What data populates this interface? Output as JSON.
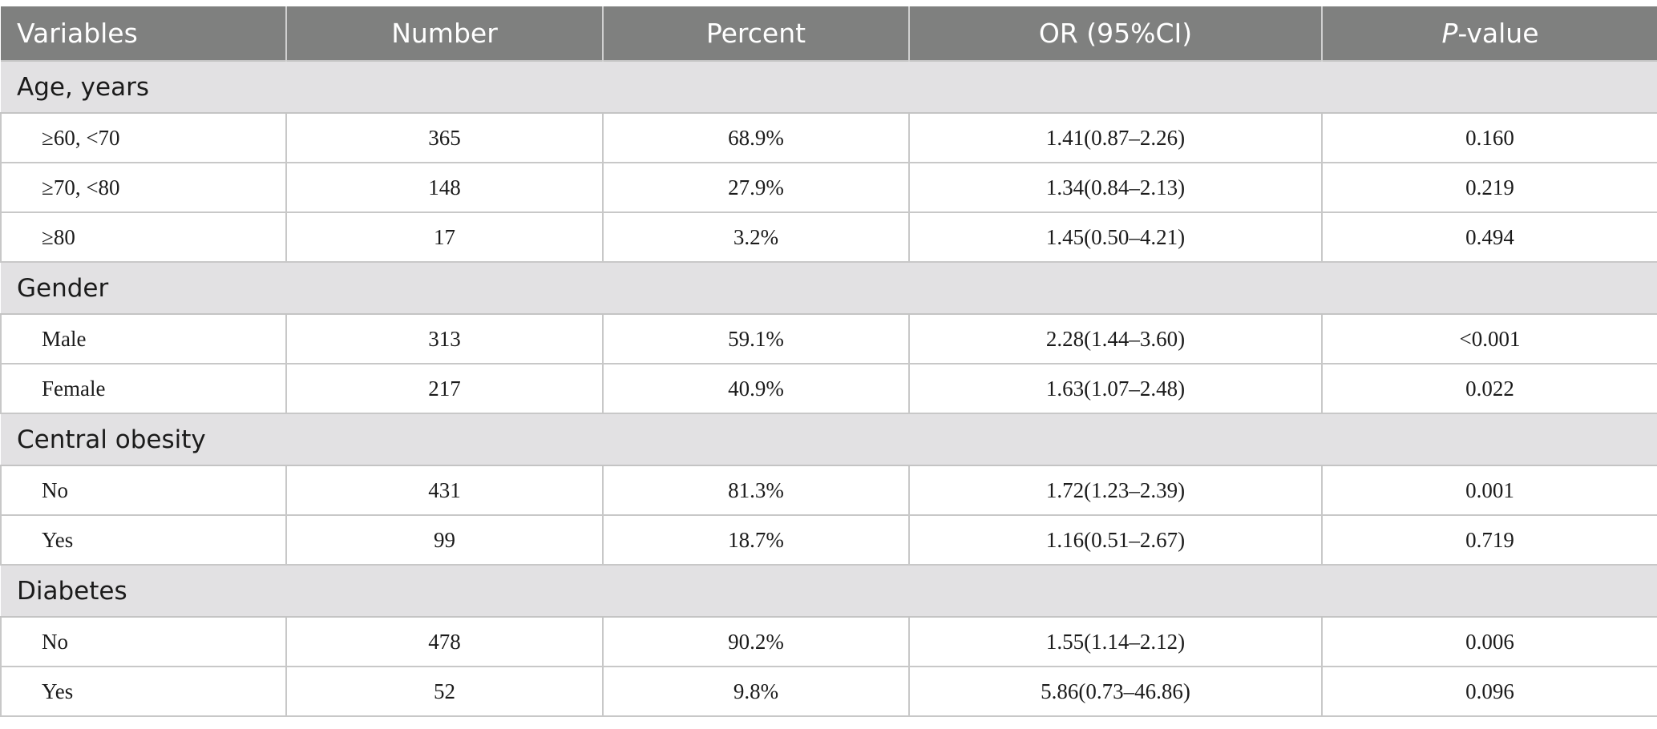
{
  "table": {
    "headers": [
      "Variables",
      "Number",
      "Percent",
      "OR (95%CI)"
    ],
    "pvalue_header": {
      "italic": "P",
      "rest": "-value"
    },
    "groups": [
      {
        "label": "Age, years",
        "rows": [
          [
            "≥60, <70",
            "365",
            "68.9%",
            "1.41(0.87–2.26)",
            "0.160"
          ],
          [
            "≥70, <80",
            "148",
            "27.9%",
            "1.34(0.84–2.13)",
            "0.219"
          ],
          [
            "≥80",
            "17",
            "3.2%",
            "1.45(0.50–4.21)",
            "0.494"
          ]
        ]
      },
      {
        "label": "Gender",
        "rows": [
          [
            "Male",
            "313",
            "59.1%",
            "2.28(1.44–3.60)",
            "<0.001"
          ],
          [
            "Female",
            "217",
            "40.9%",
            "1.63(1.07–2.48)",
            "0.022"
          ]
        ]
      },
      {
        "label": "Central obesity",
        "rows": [
          [
            "No",
            "431",
            "81.3%",
            "1.72(1.23–2.39)",
            "0.001"
          ],
          [
            "Yes",
            "99",
            "18.7%",
            "1.16(0.51–2.67)",
            "0.719"
          ]
        ]
      },
      {
        "label": "Diabetes",
        "rows": [
          [
            "No",
            "478",
            "90.2%",
            "1.55(1.14–2.12)",
            "0.006"
          ],
          [
            "Yes",
            "52",
            "9.8%",
            "5.86(0.73–46.86)",
            "0.096"
          ]
        ]
      }
    ]
  },
  "colors": {
    "header_bg": "#7f807f",
    "group_bg": "#e2e1e3",
    "border": "#c8c8c8"
  }
}
